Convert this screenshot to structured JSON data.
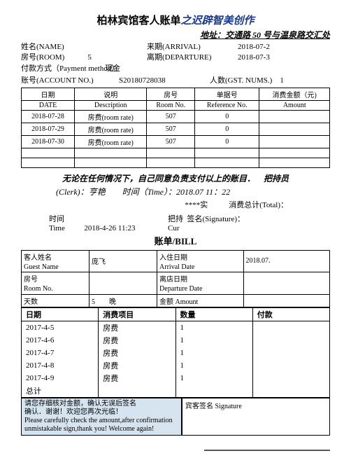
{
  "header": {
    "title_main": "柏林宾馆客人账单",
    "title_suffix": "之迟辟智美创作",
    "address_label": "地址：",
    "address_value": "交通路 50 号与温泉路交汇处"
  },
  "info": {
    "name_label": "姓名(NAME)",
    "room_label": "房号(ROOM)",
    "room_value": "5",
    "arrival_label": "来期(ARRIVAL)",
    "arrival_value": "2018-07-2",
    "departure_label": "离期(DEPARTURE)",
    "departure_value": "2018-07-3",
    "payment_label": "付款方式（Payment method）",
    "payment_value": "现金",
    "account_label": "账号(ACCOUNT NO.)",
    "account_value": "S20180728038",
    "guests_label": "人数(GST. NUMS.)",
    "guests_value": "1"
  },
  "t1": {
    "headers": {
      "date_cn": "日期",
      "date_en": "DATE",
      "desc_cn": "说明",
      "desc_en": "Description",
      "room_cn": "房号",
      "room_en": "Room No.",
      "ref_cn": "单据号",
      "ref_en": "Reference No.",
      "amt_cn": "消费金额（元)",
      "amt_en": "Amount"
    },
    "rows": [
      {
        "date": "2018-07-28",
        "desc": "房费(room rate)",
        "room": "507",
        "ref": "0",
        "amt": ""
      },
      {
        "date": "2018-07-29",
        "desc": "房费(room rate)",
        "room": "507",
        "ref": "0",
        "amt": ""
      },
      {
        "date": "2018-07-30",
        "desc": "房费(room rate)",
        "room": "507",
        "ref": "0",
        "amt": ""
      }
    ],
    "blank_rows": 2
  },
  "sig": {
    "declare": "无论在任何情况下，自己同意负责支付以上的账目．",
    "clerk_label": "(Clerk)：",
    "clerk_value": "亨艳",
    "time_label": "时间（Time）：",
    "time_value": "2018.07  11：22",
    "hold": "把持员",
    "stars": "****实",
    "total_label": "消费总计(Total)："
  },
  "time_block": {
    "time_cn": "时间",
    "time_en": "Time",
    "time_val": "2018-4-26 11:23",
    "hold2": "把持",
    "cur": "Cur",
    "sig_label": "签名(Signature)："
  },
  "bill2": {
    "title": "账单/BILL",
    "guest_cn": "客人姓名",
    "guest_en": "Guest Name",
    "guest_val": "庞飞",
    "arr_cn": "入住日期",
    "arr_en": "Arrival Date",
    "arr_val": "2018.07.",
    "room_cn": "房号",
    "room_en": "Room No.",
    "dep_cn": "离店日期",
    "dep_en": "Departure Date",
    "days_cn": "天数",
    "days_val": "5",
    "days_unit": "晚",
    "amt_cn": "金额",
    "amt_en": "Amount"
  },
  "t3": {
    "headers": {
      "date": "日期",
      "item": "消费项目",
      "qty": "数量",
      "pay": "付款"
    },
    "rows": [
      {
        "date": "2017-4-5",
        "item": "房费",
        "qty": "1",
        "pay": ""
      },
      {
        "date": "2017-4-6",
        "item": "房费",
        "qty": "1",
        "pay": ""
      },
      {
        "date": "2017-4-7",
        "item": "房费",
        "qty": "1",
        "pay": ""
      },
      {
        "date": "2017-4-8",
        "item": "房费",
        "qty": "1",
        "pay": ""
      },
      {
        "date": "2017-4-9",
        "item": "房费",
        "qty": "1",
        "pay": ""
      }
    ],
    "total_label": "总计"
  },
  "notice": {
    "cn1": "请您存细核对金额，确认无误后签名",
    "cn2": "确认．谢谢！欢迎您再次光临！",
    "en": "Please carefully check the amount,after confirmation unmistakable sign,thank you! Welcome again!",
    "sig_label": "宾客签名 Signature"
  }
}
